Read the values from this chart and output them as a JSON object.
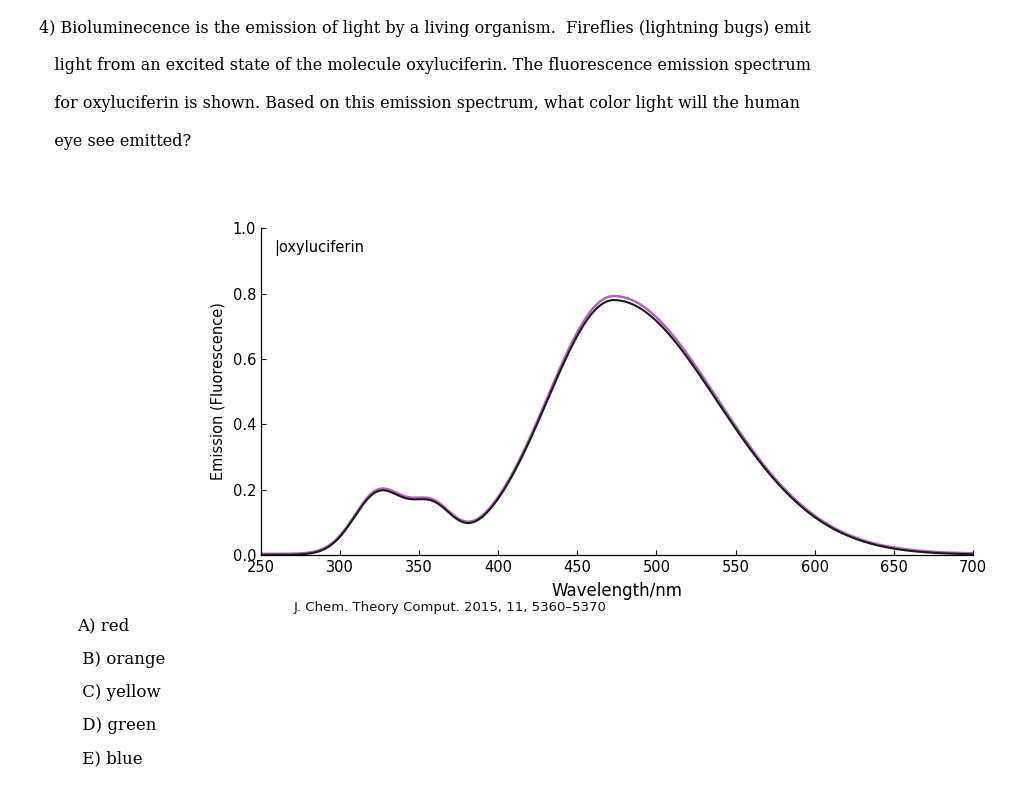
{
  "xlabel": "Wavelength/nm",
  "ylabel": "Emission (Fluorescence)",
  "annotation": "oxyluciferin",
  "reference": "J. Chem. Theory Comput. 2015, 11, 5360–5370",
  "question_line1": "4) Bioluminecence is the emission of light by a living organism.  Fireflies (lightning bugs) emit",
  "question_line2": "   light from an excited state of the molecule oxyluciferin. The fluorescence emission spectrum",
  "question_line3": "   for oxyluciferin is shown. Based on this emission spectrum, what color light will the human",
  "question_line4": "   eye see emitted?",
  "answers": [
    "A) red",
    " B) orange",
    " C) yellow",
    " D) green",
    " E) blue"
  ],
  "xlim": [
    250,
    700
  ],
  "ylim": [
    0.0,
    1.0
  ],
  "xticks": [
    250,
    300,
    350,
    400,
    450,
    500,
    550,
    600,
    650,
    700
  ],
  "yticks": [
    0.0,
    0.2,
    0.4,
    0.6,
    0.8,
    1.0
  ],
  "line_color_black": "#1a1a1a",
  "line_color_purple": "#aa44bb",
  "background_color": "#ffffff"
}
